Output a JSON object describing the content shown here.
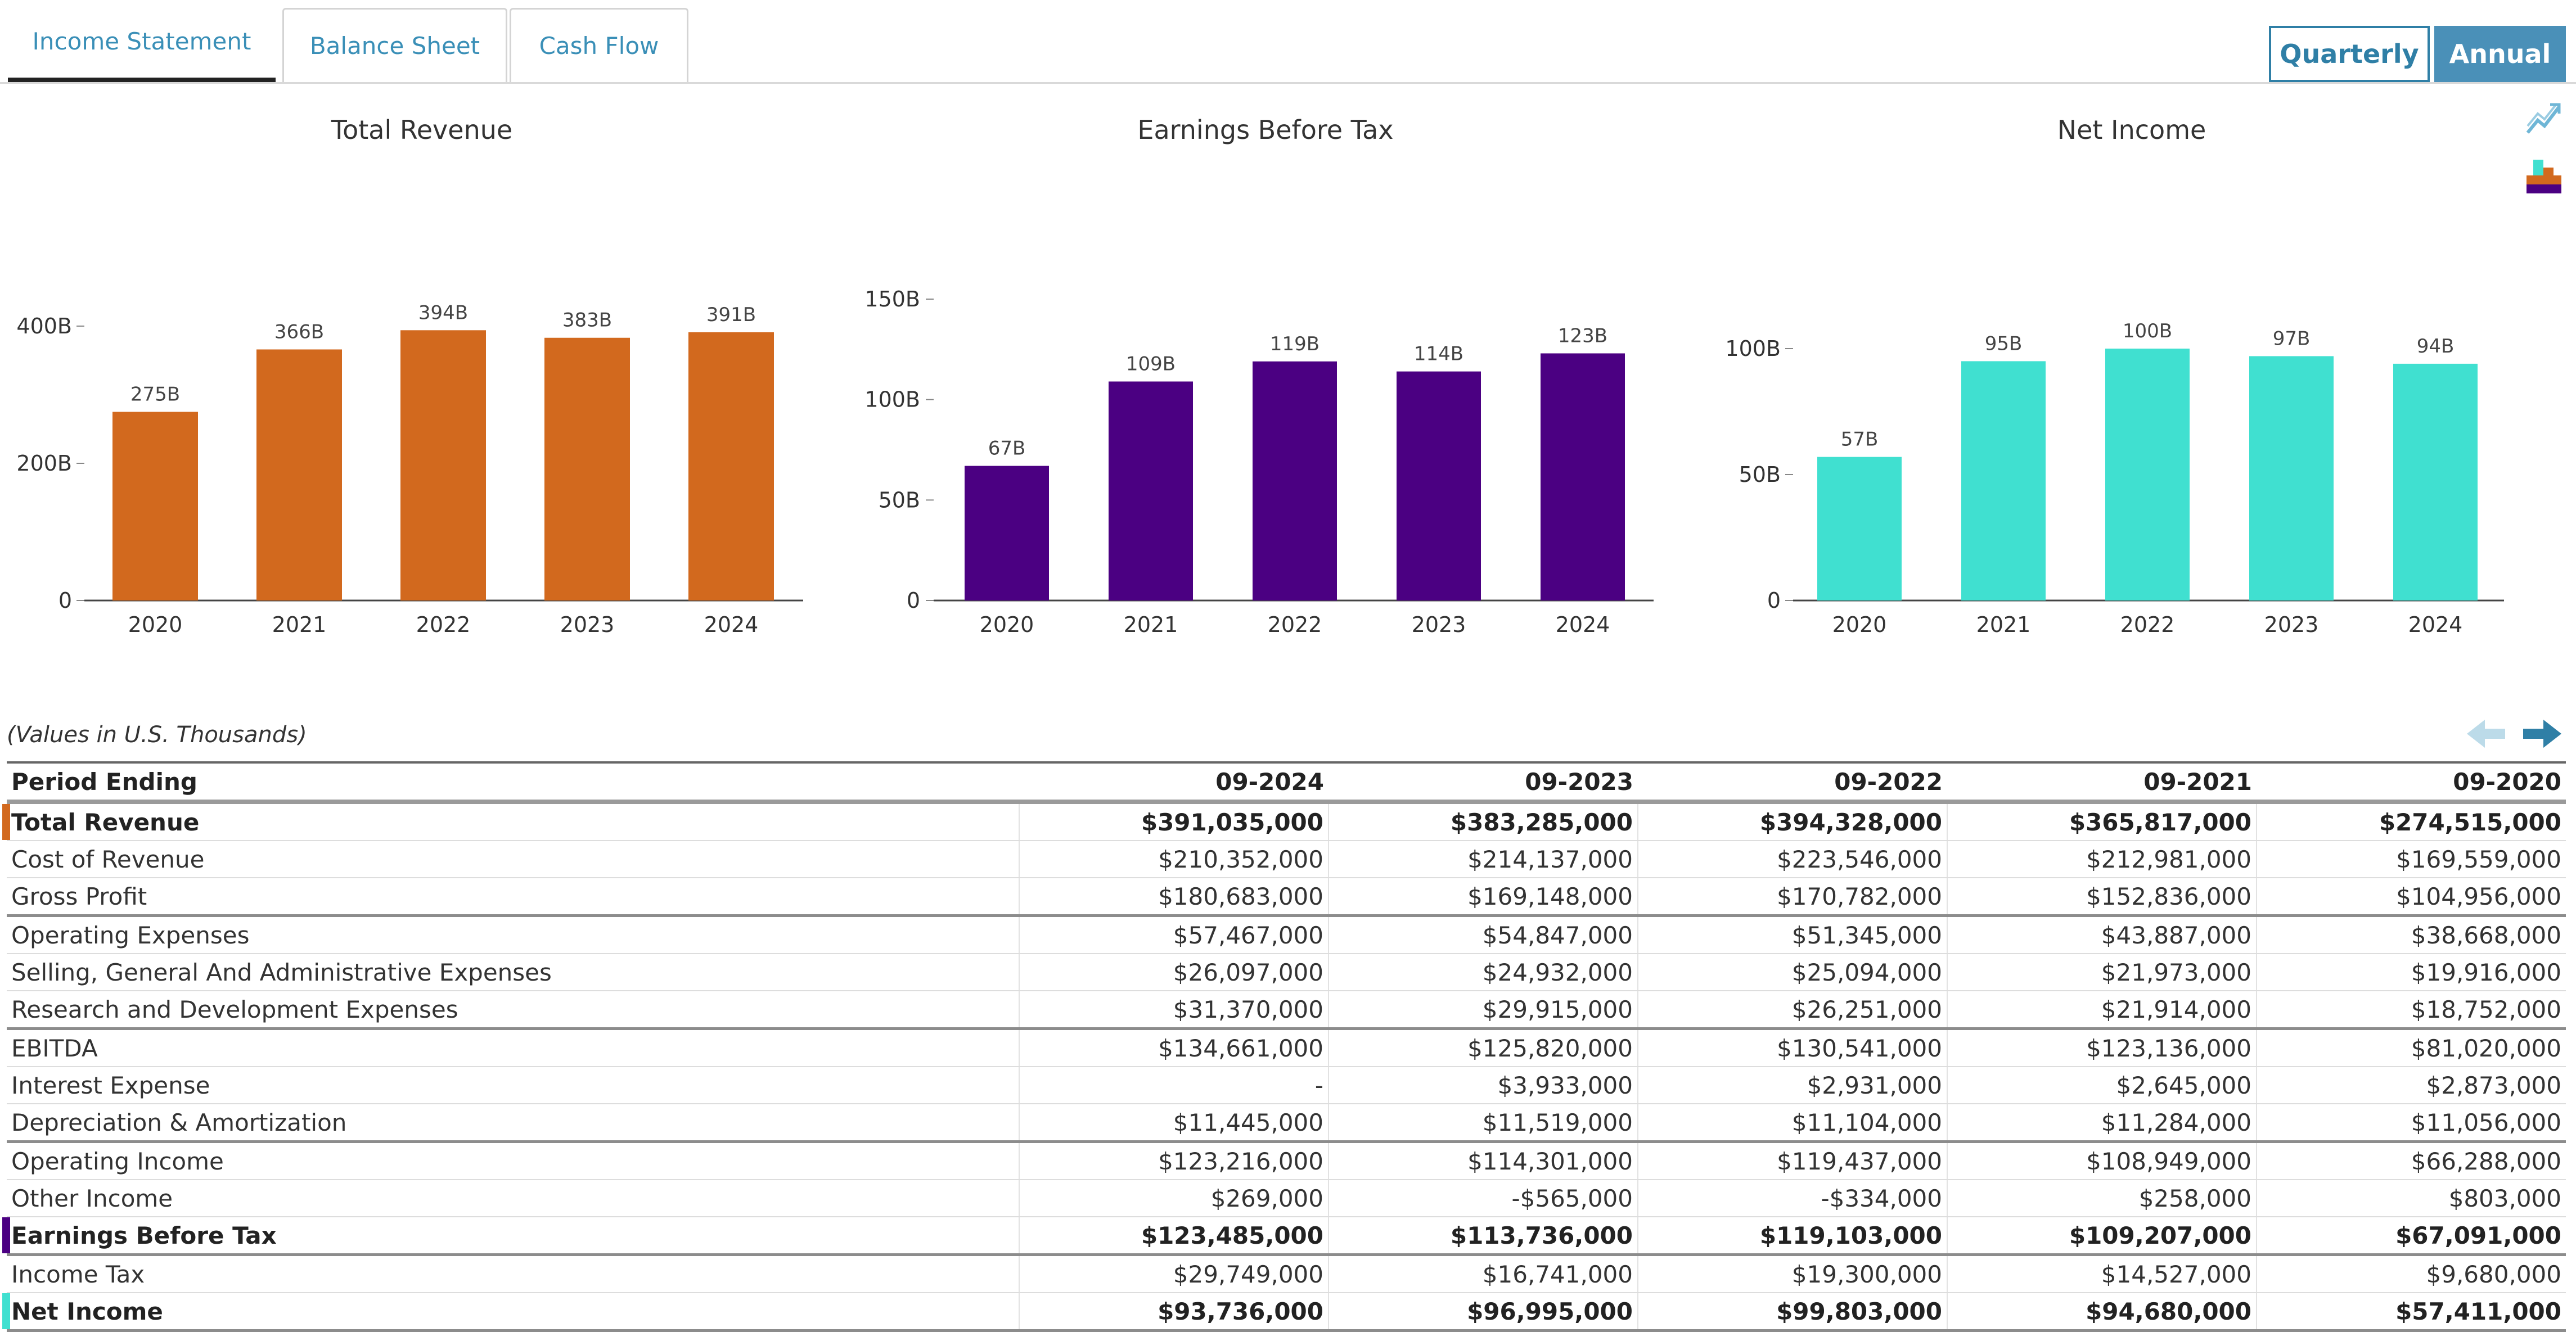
{
  "tabs": [
    {
      "label": "Income Statement",
      "active": true
    },
    {
      "label": "Balance Sheet",
      "active": false
    },
    {
      "label": "Cash Flow",
      "active": false
    }
  ],
  "period_toggle": {
    "quarterly_label": "Quarterly",
    "annual_label": "Annual",
    "selected": "Annual"
  },
  "side_icons": [
    "trend-chart-icon",
    "stacked-chart-icon"
  ],
  "colors": {
    "revenue": "#d2691e",
    "ebt": "#4b0082",
    "net_income": "#40e0d0",
    "accent": "#4a90b8"
  },
  "chart_data": [
    {
      "type": "bar",
      "title": "Total Revenue",
      "categories": [
        "2020",
        "2021",
        "2022",
        "2023",
        "2024"
      ],
      "values": [
        275,
        366,
        394,
        383,
        391
      ],
      "data_labels": [
        "275B",
        "366B",
        "394B",
        "383B",
        "391B"
      ],
      "yticks": [
        0,
        200,
        400
      ],
      "ytick_labels": [
        "0",
        "200B",
        "400B"
      ],
      "ylim": [
        0,
        400
      ],
      "color": "#d2691e"
    },
    {
      "type": "bar",
      "title": "Earnings Before Tax",
      "categories": [
        "2020",
        "2021",
        "2022",
        "2023",
        "2024"
      ],
      "values": [
        67,
        109,
        119,
        114,
        123
      ],
      "data_labels": [
        "67B",
        "109B",
        "119B",
        "114B",
        "123B"
      ],
      "yticks": [
        0,
        50,
        100,
        150
      ],
      "ytick_labels": [
        "0",
        "50B",
        "100B",
        "150B"
      ],
      "ylim": [
        0,
        150
      ],
      "color": "#4b0082"
    },
    {
      "type": "bar",
      "title": "Net Income",
      "categories": [
        "2020",
        "2021",
        "2022",
        "2023",
        "2024"
      ],
      "values": [
        57,
        95,
        100,
        97,
        94
      ],
      "data_labels": [
        "57B",
        "95B",
        "100B",
        "97B",
        "94B"
      ],
      "yticks": [
        0,
        50,
        100
      ],
      "ytick_labels": [
        "0",
        "50B",
        "100B"
      ],
      "ylim": [
        0,
        100
      ],
      "color": "#40e0d0"
    }
  ],
  "table": {
    "note": "(Values in U.S. Thousands)",
    "columns": [
      "Period Ending",
      "09-2024",
      "09-2023",
      "09-2022",
      "09-2021",
      "09-2020"
    ],
    "rows": [
      {
        "label": "Total Revenue",
        "values": [
          "$391,035,000",
          "$383,285,000",
          "$394,328,000",
          "$365,817,000",
          "$274,515,000"
        ],
        "bold": true,
        "marker": "#d2691e"
      },
      {
        "label": "Cost of Revenue",
        "values": [
          "$210,352,000",
          "$214,137,000",
          "$223,546,000",
          "$212,981,000",
          "$169,559,000"
        ]
      },
      {
        "label": "Gross Profit",
        "values": [
          "$180,683,000",
          "$169,148,000",
          "$170,782,000",
          "$152,836,000",
          "$104,956,000"
        ]
      },
      {
        "label": "Operating Expenses",
        "values": [
          "$57,467,000",
          "$54,847,000",
          "$51,345,000",
          "$43,887,000",
          "$38,668,000"
        ],
        "group_start": true
      },
      {
        "label": "Selling, General And Administrative Expenses",
        "values": [
          "$26,097,000",
          "$24,932,000",
          "$25,094,000",
          "$21,973,000",
          "$19,916,000"
        ]
      },
      {
        "label": "Research and Development Expenses",
        "values": [
          "$31,370,000",
          "$29,915,000",
          "$26,251,000",
          "$21,914,000",
          "$18,752,000"
        ]
      },
      {
        "label": "EBITDA",
        "values": [
          "$134,661,000",
          "$125,820,000",
          "$130,541,000",
          "$123,136,000",
          "$81,020,000"
        ],
        "group_start": true
      },
      {
        "label": "Interest Expense",
        "values": [
          "-",
          "$3,933,000",
          "$2,931,000",
          "$2,645,000",
          "$2,873,000"
        ]
      },
      {
        "label": "Depreciation & Amortization",
        "values": [
          "$11,445,000",
          "$11,519,000",
          "$11,104,000",
          "$11,284,000",
          "$11,056,000"
        ]
      },
      {
        "label": "Operating Income",
        "values": [
          "$123,216,000",
          "$114,301,000",
          "$119,437,000",
          "$108,949,000",
          "$66,288,000"
        ],
        "group_start": true
      },
      {
        "label": "Other Income",
        "values": [
          "$269,000",
          "-$565,000",
          "-$334,000",
          "$258,000",
          "$803,000"
        ]
      },
      {
        "label": "Earnings Before Tax",
        "values": [
          "$123,485,000",
          "$113,736,000",
          "$119,103,000",
          "$109,207,000",
          "$67,091,000"
        ],
        "bold": true,
        "marker": "#4b0082"
      },
      {
        "label": "Income Tax",
        "values": [
          "$29,749,000",
          "$16,741,000",
          "$19,300,000",
          "$14,527,000",
          "$9,680,000"
        ],
        "group_start": true
      },
      {
        "label": "Net Income",
        "values": [
          "$93,736,000",
          "$96,995,000",
          "$99,803,000",
          "$94,680,000",
          "$57,411,000"
        ],
        "bold": true,
        "marker": "#40e0d0",
        "last": true
      }
    ]
  }
}
